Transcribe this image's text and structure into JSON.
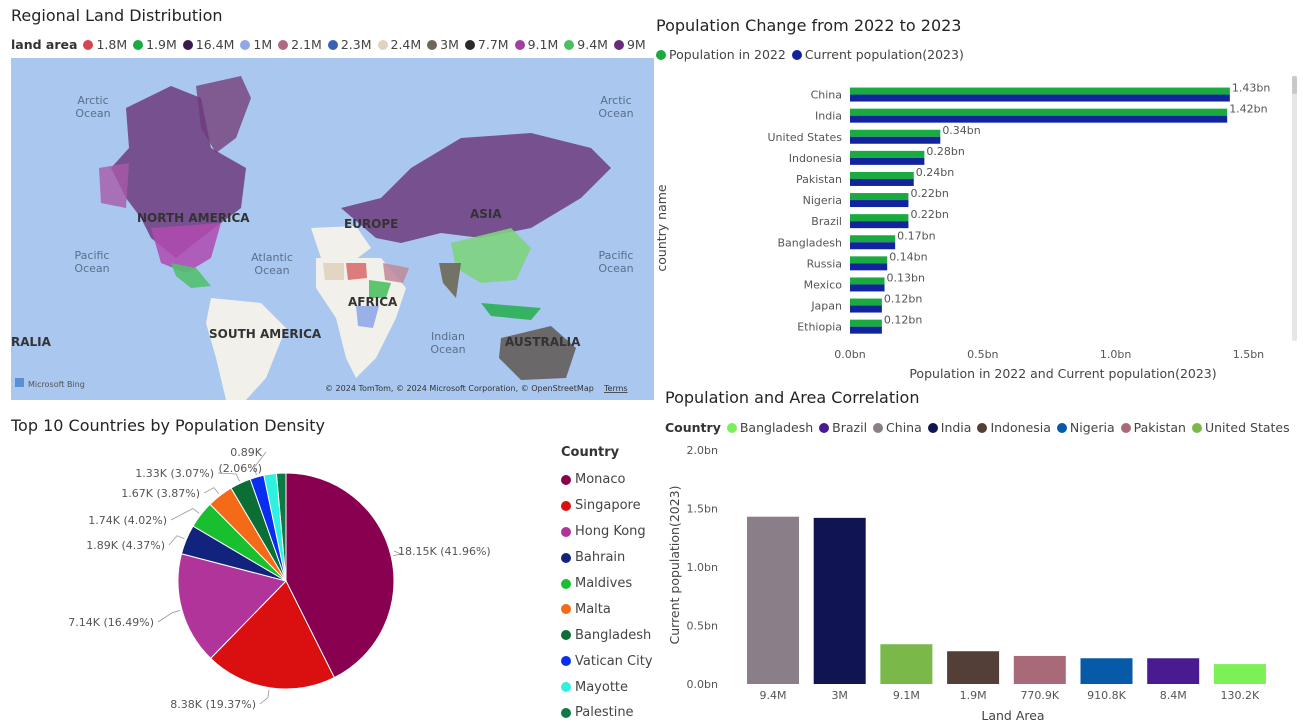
{
  "map": {
    "title": "Regional Land Distribution",
    "legend_title": "land area",
    "legend": [
      {
        "label": "1.8M",
        "color": "#d64550"
      },
      {
        "label": "1.9M",
        "color": "#1aab40"
      },
      {
        "label": "16.4M",
        "color": "#3a1a4a"
      },
      {
        "label": "1M",
        "color": "#8fa8e8"
      },
      {
        "label": "2.1M",
        "color": "#b06a7e"
      },
      {
        "label": "2.3M",
        "color": "#3a5fb8"
      },
      {
        "label": "2.4M",
        "color": "#e0d4c0"
      },
      {
        "label": "3M",
        "color": "#6e6858"
      },
      {
        "label": "7.7M",
        "color": "#2a2a2a"
      },
      {
        "label": "9.1M",
        "color": "#a040a0"
      },
      {
        "label": "9.4M",
        "color": "#4cc060"
      },
      {
        "label": "9M",
        "color": "#6a2a7a"
      }
    ],
    "continents": [
      "NORTH AMERICA",
      "EUROPE",
      "ASIA",
      "AFRICA",
      "SOUTH AMERICA",
      "AUSTRALIA",
      "RALIA"
    ],
    "oceans": {
      "arctic_left": [
        "Arctic",
        "Ocean"
      ],
      "arctic_right": [
        "Arctic",
        "Ocean"
      ],
      "pacific_left": [
        "Pacific",
        "Ocean"
      ],
      "atlantic": [
        "Atlantic",
        "Ocean"
      ],
      "pacific_right": [
        "Pacific",
        "Ocean"
      ],
      "indian": [
        "Indian",
        "Ocean"
      ]
    },
    "bing": "Microsoft Bing",
    "copyright": "© 2024 TomTom, © 2024 Microsoft Corporation, © OpenStreetMap",
    "terms": "Terms"
  },
  "bar_chart": {
    "chart_data": {
      "type": "bar",
      "orientation": "horizontal",
      "title": "Population Change from 2022 to 2023",
      "xlabel": "Population in 2022 and Current population(2023)",
      "ylabel": "country name",
      "categories": [
        "China",
        "India",
        "United States",
        "Indonesia",
        "Pakistan",
        "Nigeria",
        "Brazil",
        "Bangladesh",
        "Russia",
        "Mexico",
        "Japan",
        "Ethiopia"
      ],
      "series": [
        {
          "name": "Population in 2022",
          "color": "#1aab40",
          "values": [
            1.43,
            1.42,
            0.34,
            0.28,
            0.24,
            0.22,
            0.22,
            0.17,
            0.14,
            0.13,
            0.12,
            0.12
          ]
        },
        {
          "name": "Current population(2023)",
          "color": "#12239e",
          "values": [
            1.43,
            1.42,
            0.34,
            0.28,
            0.24,
            0.22,
            0.22,
            0.17,
            0.14,
            0.13,
            0.12,
            0.12
          ]
        }
      ],
      "data_labels": [
        "1.43bn",
        "1.42bn",
        "0.34bn",
        "0.28bn",
        "0.24bn",
        "0.22bn",
        "0.22bn",
        "0.17bn",
        "0.14bn",
        "0.13bn",
        "0.12bn",
        "0.12bn"
      ],
      "xticks": [
        0,
        0.5,
        1.0,
        1.5
      ],
      "xtick_labels": [
        "0.0bn",
        "0.5bn",
        "1.0bn",
        "1.5bn"
      ],
      "xlim": [
        0,
        1.6
      ],
      "legend_position": "top-left",
      "grid": false
    }
  },
  "pie_chart": {
    "chart_data": {
      "type": "pie",
      "title": "Top 10 Countries by Population Density",
      "legend_title": "Country",
      "legend_position": "right",
      "slices": [
        {
          "label": "Monaco",
          "value": 18.15,
          "color": "#8a0050",
          "data_label": "18.15K (41.96%)"
        },
        {
          "label": "Singapore",
          "value": 8.38,
          "color": "#d90f10",
          "data_label": "8.38K (19.37%)"
        },
        {
          "label": "Hong Kong",
          "value": 7.14,
          "color": "#b0349a",
          "data_label": "7.14K (16.49%)"
        },
        {
          "label": "Bahrain",
          "value": 1.89,
          "color": "#12237e",
          "data_label": "1.89K (4.37%)"
        },
        {
          "label": "Maldives",
          "value": 1.74,
          "color": "#18c030",
          "data_label": "1.74K (4.02%)"
        },
        {
          "label": "Malta",
          "value": 1.67,
          "color": "#f56a16",
          "data_label": "1.67K (3.87%)"
        },
        {
          "label": "Bangladesh",
          "value": 1.33,
          "color": "#0a6e35",
          "data_label": "1.33K (3.07%)"
        },
        {
          "label": "Vatican City",
          "value": 0.89,
          "color": "#0a2ef0",
          "data_label": "0.89K (2.06%)"
        },
        {
          "label": "Mayotte",
          "value": 0.8,
          "color": "#30f0e0",
          "data_label": ""
        },
        {
          "label": "Palestine",
          "value": 0.6,
          "color": "#0c7a42",
          "data_label": ""
        }
      ]
    }
  },
  "column_chart": {
    "chart_data": {
      "type": "bar",
      "title": "Population and Area Correlation",
      "legend_title": "Country",
      "legend_position": "top-left",
      "xlabel": "Land Area",
      "ylabel": "Current population(2023)",
      "categories": [
        "9.4M",
        "3M",
        "9.1M",
        "1.9M",
        "770.9K",
        "910.8K",
        "8.4M",
        "130.2K"
      ],
      "series": [
        {
          "name": "Bangladesh",
          "color": "#7cf057"
        },
        {
          "name": "Brazil",
          "color": "#4a1a90"
        },
        {
          "name": "China",
          "color": "#8a7e88"
        },
        {
          "name": "India",
          "color": "#101450"
        },
        {
          "name": "Indonesia",
          "color": "#543f38"
        },
        {
          "name": "Nigeria",
          "color": "#075aa8"
        },
        {
          "name": "Pakistan",
          "color": "#a86a78"
        },
        {
          "name": "United States",
          "color": "#7ab84a"
        }
      ],
      "bars": [
        {
          "category": "9.4M",
          "country": "China",
          "value": 1.43,
          "color": "#8a7e88"
        },
        {
          "category": "3M",
          "country": "India",
          "value": 1.42,
          "color": "#101450"
        },
        {
          "category": "9.1M",
          "country": "United States",
          "value": 0.34,
          "color": "#7ab84a"
        },
        {
          "category": "1.9M",
          "country": "Indonesia",
          "value": 0.28,
          "color": "#543f38"
        },
        {
          "category": "770.9K",
          "country": "Pakistan",
          "value": 0.24,
          "color": "#a86a78"
        },
        {
          "category": "910.8K",
          "country": "Nigeria",
          "value": 0.22,
          "color": "#075aa8"
        },
        {
          "category": "8.4M",
          "country": "Brazil",
          "value": 0.22,
          "color": "#4a1a90"
        },
        {
          "category": "130.2K",
          "country": "Bangladesh",
          "value": 0.17,
          "color": "#7cf057"
        }
      ],
      "yticks": [
        0,
        0.5,
        1.0,
        1.5,
        2.0
      ],
      "ytick_labels": [
        "0.0bn",
        "0.5bn",
        "1.0bn",
        "1.5bn",
        "2.0bn"
      ],
      "ylim": [
        0,
        2.0
      ],
      "grid": false
    }
  }
}
